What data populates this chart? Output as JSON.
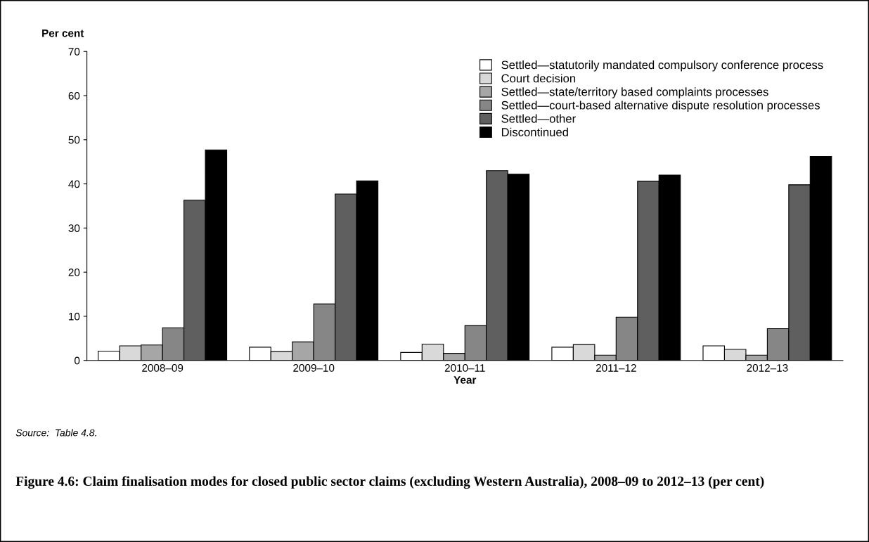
{
  "chart_data": {
    "type": "bar",
    "title": "Figure 4.6: Claim finalisation modes for closed public sector claims (excluding Western Australia), 2008–09 to 2012–13 (per cent)",
    "xlabel": "Year",
    "ylabel": "Per cent",
    "categories": [
      "2008–09",
      "2009–10",
      "2010–11",
      "2011–12",
      "2012–13"
    ],
    "series": [
      {
        "name": "Settled—statutorily mandated compulsory conference process",
        "color": "#ffffff",
        "values": [
          2.1,
          3.0,
          1.8,
          3.0,
          3.3
        ]
      },
      {
        "name": "Court decision",
        "color": "#d9d9d9",
        "values": [
          3.3,
          2.0,
          3.7,
          3.6,
          2.5
        ]
      },
      {
        "name": "Settled—state/territory based complaints processes",
        "color": "#a6a6a6",
        "values": [
          3.5,
          4.2,
          1.6,
          1.2,
          1.2
        ]
      },
      {
        "name": "Settled—court-based alternative dispute resolution processes",
        "color": "#868686",
        "values": [
          7.4,
          12.8,
          7.9,
          9.8,
          7.2
        ]
      },
      {
        "name": "Settled—other",
        "color": "#5f5f5f",
        "values": [
          36.3,
          37.7,
          43.0,
          40.6,
          39.8
        ]
      },
      {
        "name": "Discontinued",
        "color": "#000000",
        "values": [
          47.7,
          40.7,
          42.2,
          42.0,
          46.2
        ]
      }
    ],
    "ylim": [
      0,
      70
    ],
    "yticks": [
      0,
      10,
      20,
      30,
      40,
      50,
      60,
      70
    ],
    "grid": false,
    "legend": "top right",
    "annotations": [
      "Source:  Table 4.8."
    ]
  }
}
